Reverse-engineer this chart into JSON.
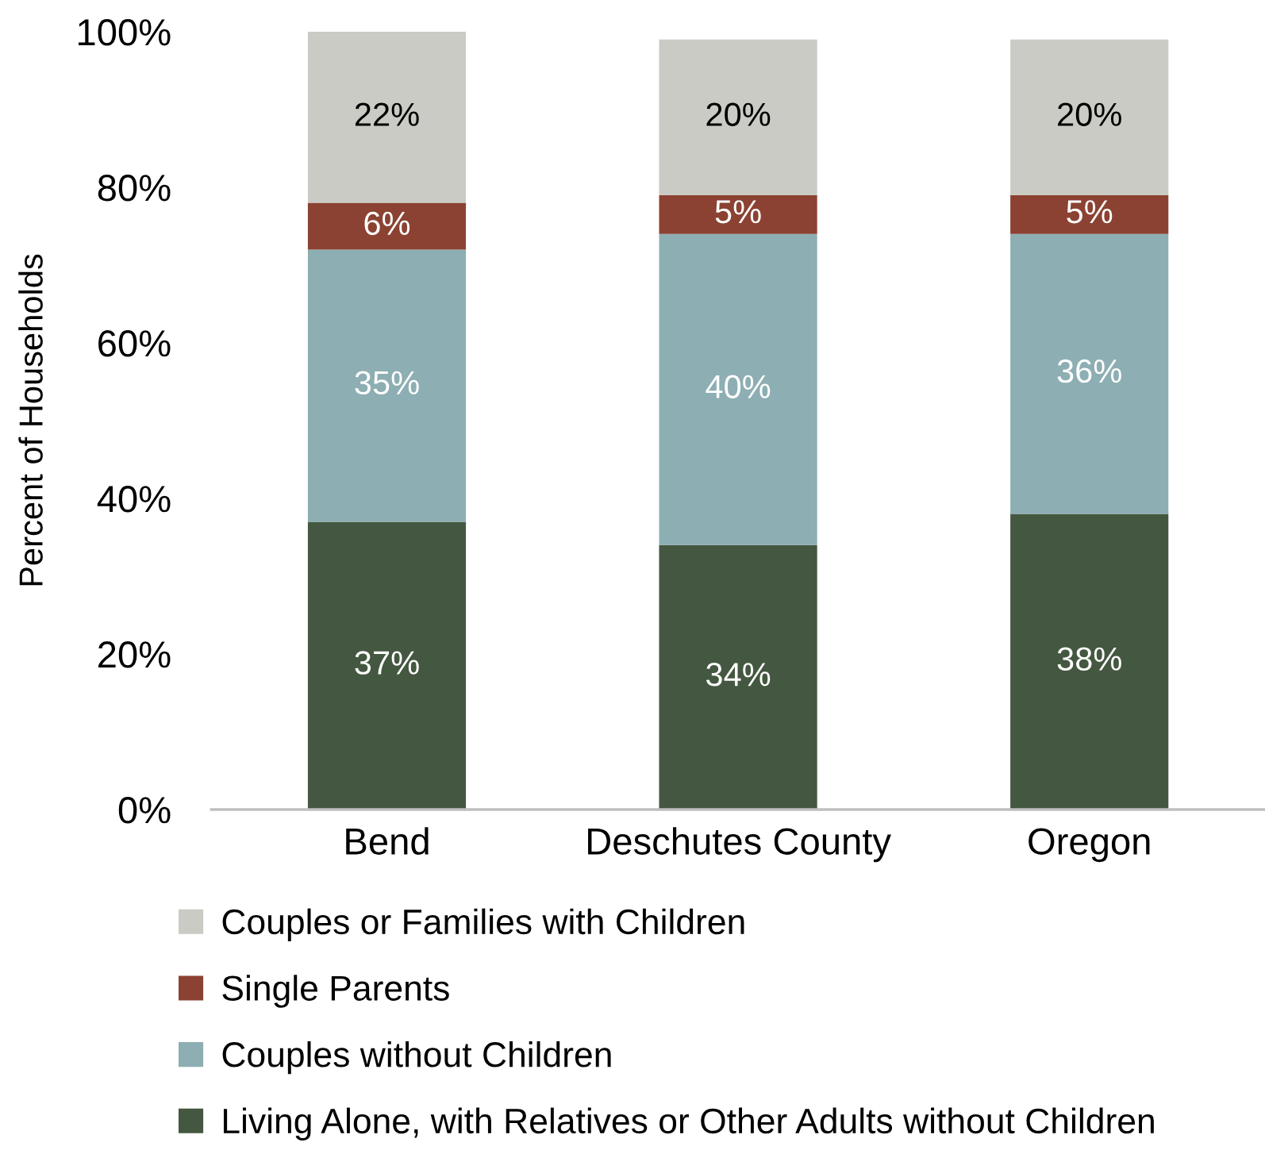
{
  "chart_data": {
    "type": "bar",
    "stacked": true,
    "ylabel": "Percent of Households",
    "categories": [
      "Bend",
      "Deschutes County",
      "Oregon"
    ],
    "series": [
      {
        "name": "Living Alone, with Relatives or Other Adults without Children",
        "color": "#445740",
        "values": [
          37,
          34,
          38
        ],
        "value_labels": [
          "37%",
          "34%",
          "38%"
        ]
      },
      {
        "name": "Couples without Children",
        "color": "#8daeb3",
        "values": [
          35,
          40,
          36
        ],
        "value_labels": [
          "35%",
          "40%",
          "36%"
        ]
      },
      {
        "name": "Single Parents",
        "color": "#8b4232",
        "values": [
          6,
          5,
          5
        ],
        "value_labels": [
          "6%",
          "5%",
          "5%"
        ]
      },
      {
        "name": "Couples or Families with Children",
        "color": "#c9cbc4",
        "values": [
          22,
          20,
          20
        ],
        "value_labels": [
          "22%",
          "20%",
          "20%"
        ]
      }
    ],
    "ylim": [
      0,
      100
    ],
    "yticks": [
      {
        "value": 0,
        "label": "0%"
      },
      {
        "value": 20,
        "label": "20%"
      },
      {
        "value": 40,
        "label": "40%"
      },
      {
        "value": 60,
        "label": "60%"
      },
      {
        "value": 80,
        "label": "80%"
      },
      {
        "value": 100,
        "label": "100%"
      }
    ],
    "grid": false,
    "legend": "bottom"
  }
}
